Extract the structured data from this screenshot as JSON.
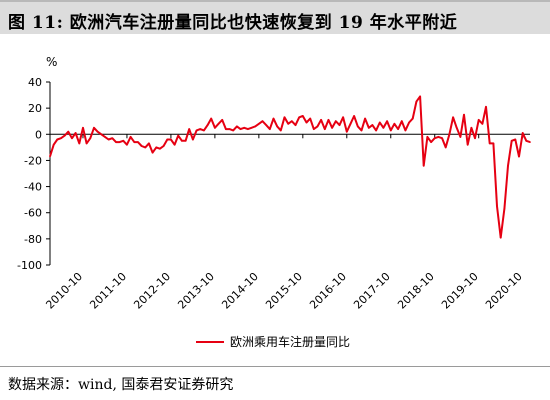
{
  "title": "图 11: 欧洲汽车注册量同比也快速恢复到 19 年水平附近",
  "source": "数据来源：wind, 国泰君安证券研究",
  "chart_data": {
    "type": "line",
    "title": "",
    "xlabel": "",
    "ylabel": "%",
    "ylim": [
      -100,
      40
    ],
    "yticks": [
      40,
      20,
      0,
      -20,
      -40,
      -60,
      -80,
      -100
    ],
    "xticks": [
      "2010-10",
      "2011-10",
      "2012-10",
      "2013-10",
      "2014-10",
      "2015-10",
      "2016-10",
      "2017-10",
      "2018-10",
      "2019-10",
      "2020-10"
    ],
    "grid": false,
    "legend_position": "bottom",
    "series": [
      {
        "name": "欧洲乘用车注册量同比",
        "color": "#e60012",
        "x_start": "2010-01",
        "frequency": "monthly",
        "values": [
          -17,
          -8,
          -4,
          -3,
          -1,
          2,
          -3,
          1,
          -7,
          5,
          -7,
          -3,
          5,
          2,
          0,
          -2,
          -4,
          -3,
          -6,
          -6,
          -5,
          -8,
          -2,
          -6,
          -6,
          -9,
          -10,
          -7,
          -14,
          -10,
          -11,
          -9,
          -4,
          -4,
          -8,
          -1,
          -5,
          -5,
          4,
          -4,
          3,
          4,
          3,
          7,
          12,
          5,
          8,
          11,
          4,
          4,
          3,
          6,
          4,
          5,
          4,
          5,
          6,
          8,
          10,
          7,
          4,
          12,
          6,
          3,
          13,
          8,
          10,
          7,
          13,
          14,
          9,
          12,
          4,
          6,
          11,
          4,
          11,
          5,
          10,
          7,
          13,
          2,
          8,
          14,
          6,
          3,
          12,
          5,
          7,
          3,
          9,
          5,
          10,
          3,
          8,
          4,
          10,
          3,
          9,
          12,
          25,
          29,
          -24,
          -2,
          -6,
          -3,
          -2,
          -3,
          -10,
          0,
          13,
          5,
          -2,
          15,
          -8,
          5,
          -3,
          11,
          8,
          21,
          -7,
          -7,
          -55,
          -79,
          -57,
          -24,
          -5,
          -4,
          -17,
          1,
          -5,
          -6
        ]
      }
    ]
  }
}
